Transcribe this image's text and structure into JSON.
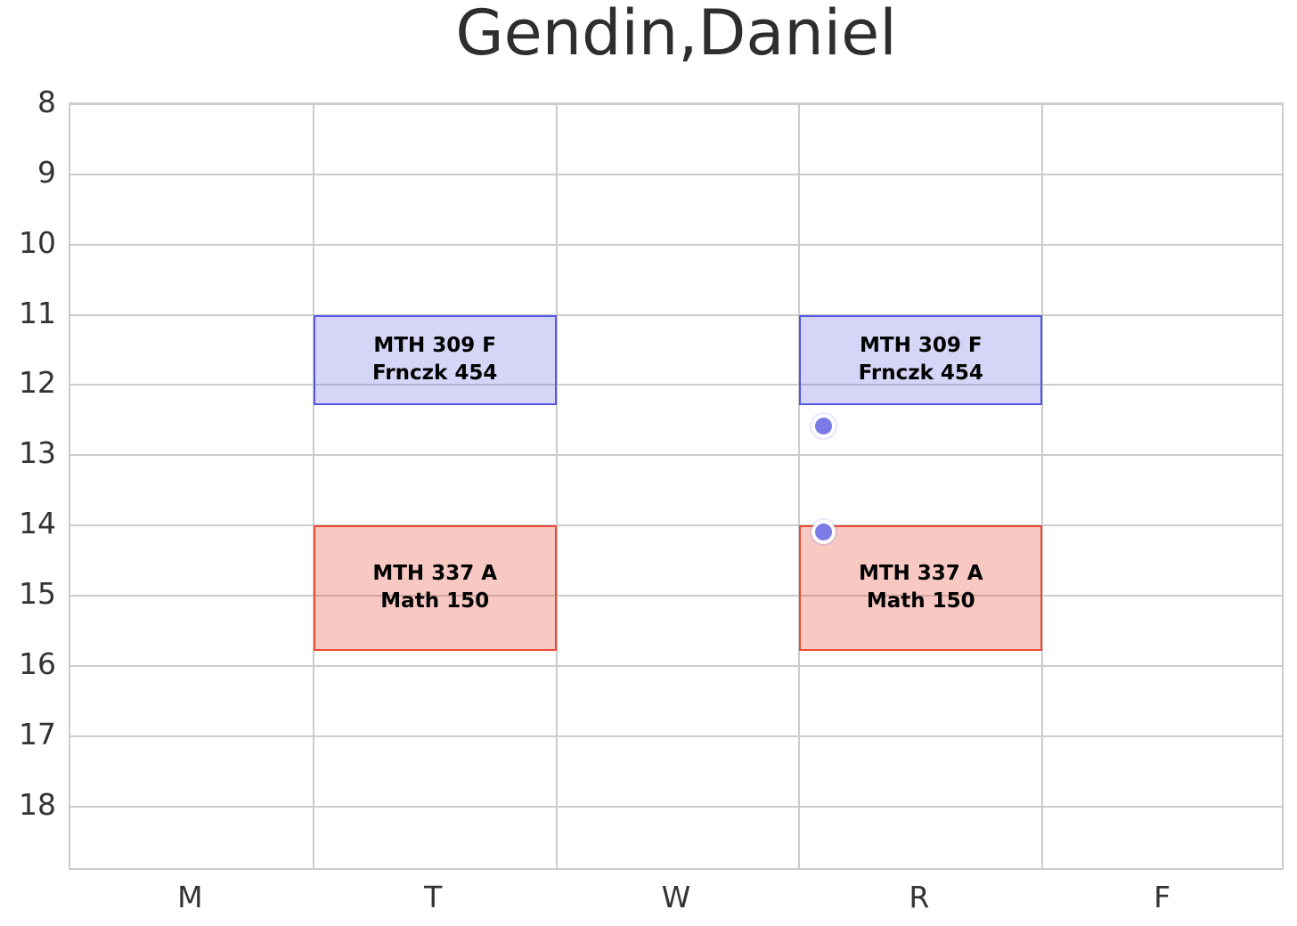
{
  "chart_data": {
    "type": "schedule-grid",
    "title": "Gendin,Daniel",
    "x_categories": [
      "M",
      "T",
      "W",
      "R",
      "F"
    ],
    "y_ticks": [
      8,
      9,
      10,
      11,
      12,
      13,
      14,
      15,
      16,
      17,
      18
    ],
    "y_axis": {
      "top_hour": 8,
      "bottom_hour": 18.93,
      "inverted": true
    },
    "grid": true,
    "legend": "none",
    "events": [
      {
        "day": "T",
        "start_hour": 11.0,
        "end_hour": 12.28,
        "lines": [
          "MTH 309 F",
          "Frnczk 454"
        ],
        "fill": "rgba(99,99,228,0.27)",
        "border": "#5656e3"
      },
      {
        "day": "R",
        "start_hour": 11.0,
        "end_hour": 12.28,
        "lines": [
          "MTH 309 F",
          "Frnczk 454"
        ],
        "fill": "rgba(99,99,228,0.27)",
        "border": "#5656e3"
      },
      {
        "day": "T",
        "start_hour": 14.0,
        "end_hour": 15.78,
        "lines": [
          "MTH 337 A",
          "Math 150"
        ],
        "fill": "rgba(232,75,53,0.30)",
        "border": "#e84b35"
      },
      {
        "day": "R",
        "start_hour": 14.0,
        "end_hour": 15.78,
        "lines": [
          "MTH 337 A",
          "Math 150"
        ],
        "fill": "rgba(232,75,53,0.30)",
        "border": "#e84b35"
      }
    ],
    "markers": [
      {
        "day": "R",
        "day_offset": -0.4,
        "hour": 12.58,
        "color": "#7b7be6"
      },
      {
        "day": "R",
        "day_offset": -0.4,
        "hour": 14.09,
        "color": "#7b7be6"
      }
    ],
    "colors": {
      "grid": "#cccccc",
      "title_text": "#2e2e2e",
      "tick_text": "#333333",
      "event_text": "#000000",
      "background": "#ffffff"
    }
  }
}
